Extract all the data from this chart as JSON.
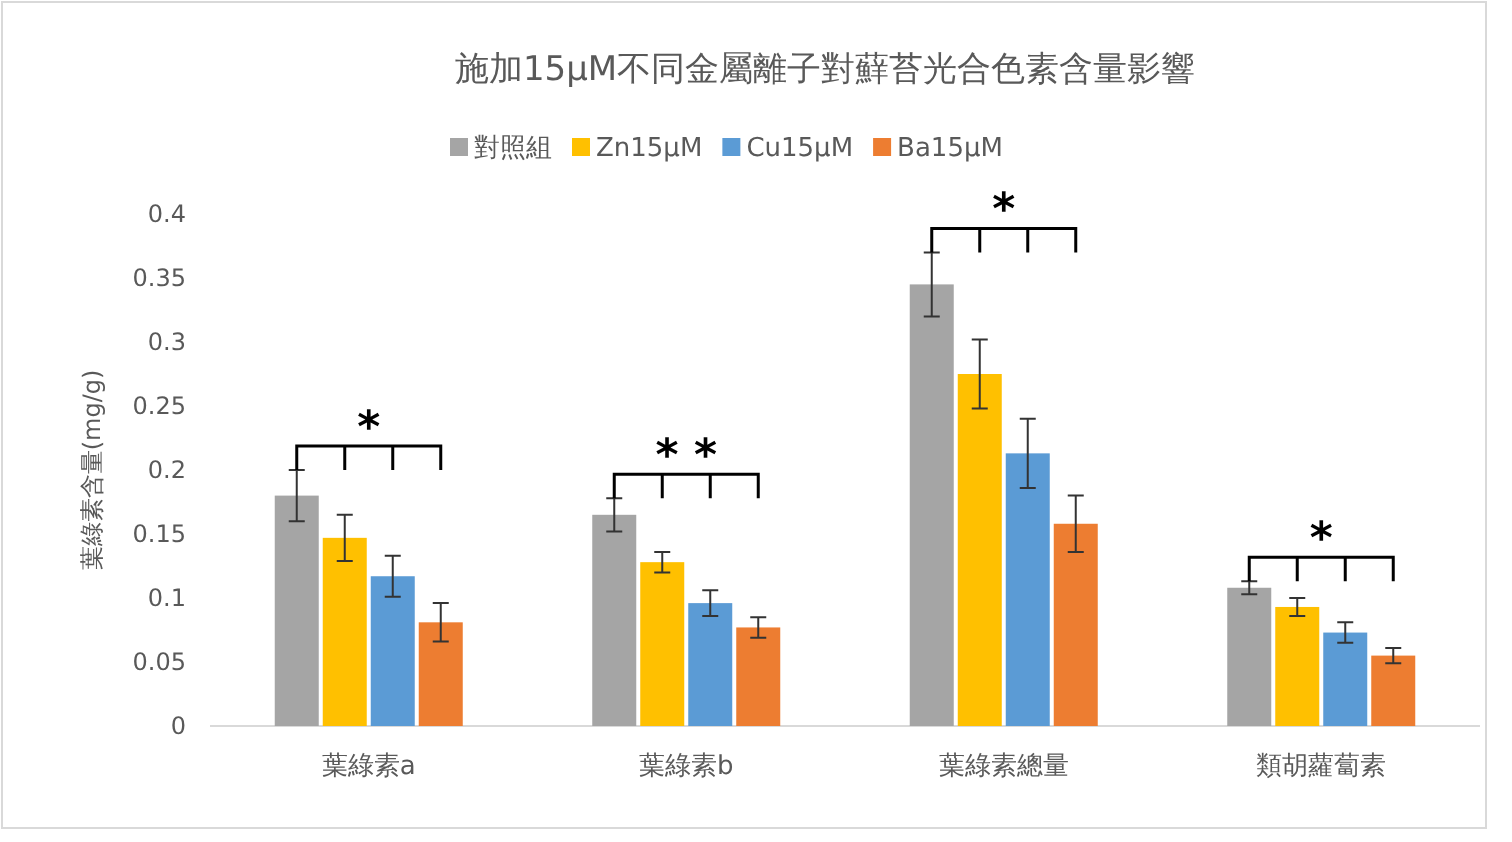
{
  "chart_data": {
    "type": "bar",
    "title": "施加15μM不同金屬離子對蘚苔光合色素含量影響",
    "ylabel": "葉綠素含量(mg/g)",
    "categories": [
      "葉綠素a",
      "葉綠素b",
      "葉綠素總量",
      "類胡蘿蔔素"
    ],
    "series": [
      {
        "name": "對照組",
        "color": "#a5a5a5",
        "values": [
          0.18,
          0.165,
          0.345,
          0.108
        ],
        "errors": [
          0.02,
          0.013,
          0.025,
          0.005
        ]
      },
      {
        "name": "Zn15μM",
        "color": "#ffc000",
        "values": [
          0.147,
          0.128,
          0.275,
          0.093
        ],
        "errors": [
          0.018,
          0.008,
          0.027,
          0.007
        ]
      },
      {
        "name": "Cu15μM",
        "color": "#5b9bd5",
        "values": [
          0.117,
          0.096,
          0.213,
          0.073
        ],
        "errors": [
          0.016,
          0.01,
          0.027,
          0.008
        ]
      },
      {
        "name": "Ba15μM",
        "color": "#ed7d31",
        "values": [
          0.081,
          0.077,
          0.158,
          0.055
        ],
        "errors": [
          0.015,
          0.008,
          0.022,
          0.006
        ]
      }
    ],
    "ylim": [
      0,
      0.4
    ],
    "yticks": [
      0,
      0.05,
      0.1,
      0.15,
      0.2,
      0.25,
      0.3,
      0.35,
      0.4
    ],
    "grid": false,
    "legend": "top",
    "annotations": [
      "*",
      "* *",
      "*",
      "*"
    ]
  }
}
